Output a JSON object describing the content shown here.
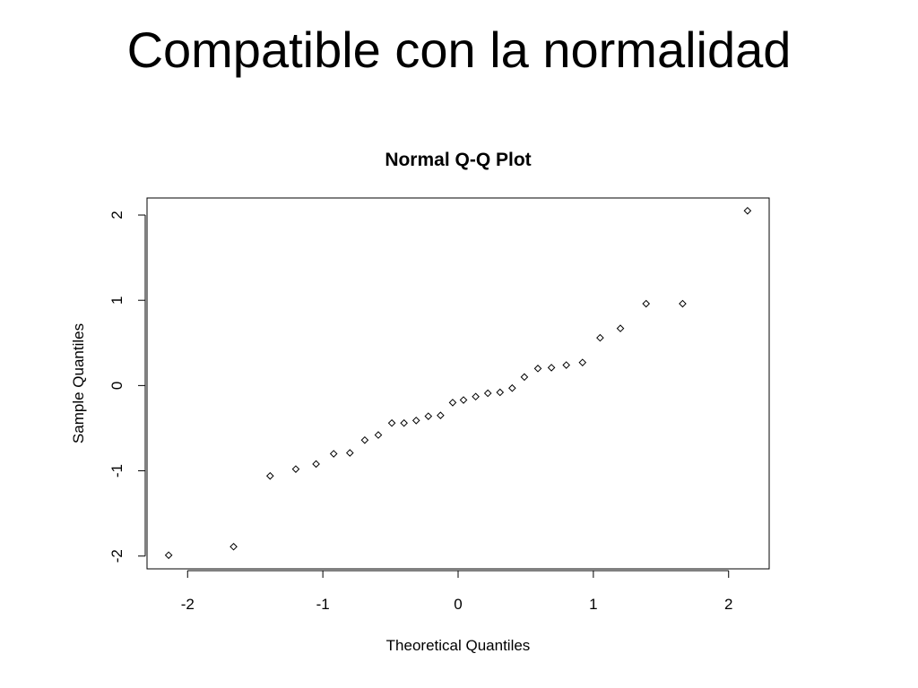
{
  "slide": {
    "title": "Compatible con la normalidad"
  },
  "chart_data": {
    "type": "scatter",
    "title": "Normal Q-Q Plot",
    "xlabel": "Theoretical Quantiles",
    "ylabel": "Sample Quantiles",
    "xlim": [
      -2.3,
      2.3
    ],
    "ylim": [
      -2.15,
      2.2
    ],
    "xticks": [
      -2,
      -1,
      0,
      1,
      2
    ],
    "yticks": [
      -2,
      -1,
      0,
      1,
      2
    ],
    "grid": false,
    "marker": "open-diamond",
    "series": [
      {
        "x": [
          -2.14,
          -1.66,
          -1.39,
          -1.2,
          -1.05,
          -0.92,
          -0.8,
          -0.69,
          -0.59,
          -0.49,
          -0.4,
          -0.31,
          -0.22,
          -0.13,
          -0.04,
          0.04,
          0.13,
          0.22,
          0.31,
          0.4,
          0.49,
          0.59,
          0.69,
          0.8,
          0.92,
          1.05,
          1.2,
          1.39,
          1.66,
          2.14
        ],
        "y": [
          -1.99,
          -1.89,
          -1.06,
          -0.98,
          -0.92,
          -0.8,
          -0.79,
          -0.64,
          -0.58,
          -0.44,
          -0.44,
          -0.41,
          -0.36,
          -0.35,
          -0.2,
          -0.17,
          -0.13,
          -0.09,
          -0.08,
          -0.03,
          0.1,
          0.2,
          0.21,
          0.24,
          0.27,
          0.56,
          0.67,
          0.96,
          0.96,
          2.05
        ]
      }
    ]
  }
}
